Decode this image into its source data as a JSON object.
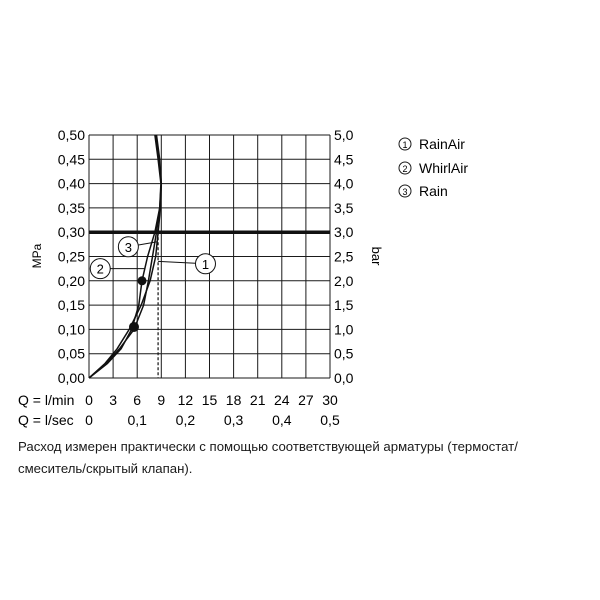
{
  "chart_data": {
    "type": "line",
    "title": "",
    "y_left": {
      "label": "MPa",
      "ticks": [
        "0,00",
        "0,05",
        "0,10",
        "0,15",
        "0,20",
        "0,25",
        "0,30",
        "0,35",
        "0,40",
        "0,45",
        "0,50"
      ],
      "ylim": [
        0,
        0.5
      ]
    },
    "y_right": {
      "label": "bar",
      "ticks": [
        "0,0",
        "0,5",
        "1,0",
        "1,5",
        "2,0",
        "2,5",
        "3,0",
        "3,5",
        "4,0",
        "4,5",
        "5,0"
      ],
      "ylim": [
        0,
        5
      ]
    },
    "x_lmin": {
      "label": "Q = l/min",
      "ticks": [
        "0",
        "3",
        "6",
        "9",
        "12",
        "15",
        "18",
        "21",
        "24",
        "27",
        "30"
      ],
      "xlim": [
        0,
        30
      ]
    },
    "x_lsec": {
      "label": "Q = l/sec",
      "ticks": [
        {
          "value": 0,
          "text": "0"
        },
        {
          "value": 6,
          "text": "0,1"
        },
        {
          "value": 12,
          "text": "0,2"
        },
        {
          "value": 18,
          "text": "0,3"
        },
        {
          "value": 24,
          "text": "0,4"
        },
        {
          "value": 30,
          "text": "0,5"
        }
      ]
    },
    "grid": true,
    "reference_line": {
      "y": 0.3,
      "x_at": 8.6
    },
    "series": [
      {
        "name": "RainAir",
        "marker": "1",
        "points": [
          [
            0,
            0
          ],
          [
            2,
            0.03
          ],
          [
            3.5,
            0.06
          ],
          [
            5,
            0.1
          ],
          [
            6.5,
            0.15
          ],
          [
            7.6,
            0.2
          ],
          [
            8.3,
            0.25
          ],
          [
            8.6,
            0.3
          ],
          [
            8.9,
            0.35
          ],
          [
            9,
            0.4
          ],
          [
            8.8,
            0.45
          ],
          [
            8.4,
            0.5
          ]
        ]
      },
      {
        "name": "WhirlAir",
        "marker": "2",
        "points": [
          [
            0,
            0
          ],
          [
            2.3,
            0.03
          ],
          [
            4,
            0.06
          ],
          [
            5.3,
            0.1
          ],
          [
            6.2,
            0.15
          ],
          [
            6.6,
            0.2
          ],
          [
            7.3,
            0.25
          ],
          [
            8.2,
            0.3
          ],
          [
            8.8,
            0.35
          ],
          [
            9,
            0.4
          ],
          [
            8.7,
            0.45
          ],
          [
            8.3,
            0.5
          ]
        ]
      },
      {
        "name": "Rain",
        "marker": "3",
        "points": [
          [
            0,
            0
          ],
          [
            2.1,
            0.03
          ],
          [
            3.8,
            0.06
          ],
          [
            5.6,
            0.1
          ],
          [
            6.8,
            0.15
          ],
          [
            7.4,
            0.2
          ],
          [
            7.9,
            0.25
          ],
          [
            8.4,
            0.3
          ],
          [
            8.8,
            0.35
          ],
          [
            8.95,
            0.4
          ],
          [
            8.6,
            0.45
          ],
          [
            8.2,
            0.5
          ]
        ]
      }
    ],
    "dots": [
      [
        6.6,
        0.2
      ],
      [
        5.6,
        0.105
      ]
    ],
    "callouts": [
      {
        "label": "1",
        "series": "RainAir",
        "at": [
          8.6,
          0.24
        ],
        "x": 14.5,
        "y": 0.235
      },
      {
        "label": "2",
        "series": "WhirlAir",
        "at": [
          7.0,
          0.225
        ],
        "x": 1.4,
        "y": 0.225
      },
      {
        "label": "3",
        "series": "Rain",
        "at": [
          8.4,
          0.28
        ],
        "x": 4.9,
        "y": 0.27
      }
    ]
  },
  "legend": [
    {
      "marker": "1",
      "name": "RainAir"
    },
    {
      "marker": "2",
      "name": "WhirlAir"
    },
    {
      "marker": "3",
      "name": "Rain"
    }
  ],
  "note": {
    "line1": "Расход измерен практически с помощью соответствующей арматуры (термостат/",
    "line2": "смеситель/скрытый клапан)."
  }
}
